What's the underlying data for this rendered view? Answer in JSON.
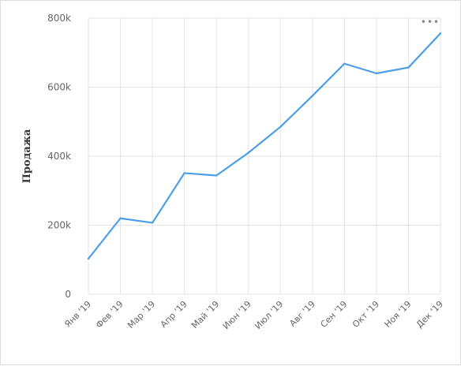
{
  "chart_data": {
    "type": "line",
    "title": "",
    "xlabel": "",
    "ylabel": "Продажа",
    "categories": [
      "Янв '19",
      "Фев '19",
      "Мар '19",
      "Апр '19",
      "Май '19",
      "Июн '19",
      "Июл '19",
      "Авг '19",
      "Сен '19",
      "Окт '19",
      "Ноя '19",
      "Дек '19"
    ],
    "series": [
      {
        "values": [
          103000,
          220000,
          207000,
          351000,
          344000,
          410000,
          485000,
          575000,
          668000,
          640000,
          657000,
          756000
        ],
        "color": "#4c9ee6"
      }
    ],
    "ylim": [
      0,
      800000
    ],
    "yticks": [
      0,
      200000,
      400000,
      600000,
      800000
    ],
    "ytick_labels": [
      "0",
      "200k",
      "400k",
      "600k",
      "800k"
    ],
    "grid": true,
    "legend": "none"
  },
  "menu": {
    "icon": "more-horizontal-icon",
    "label": "•••"
  }
}
